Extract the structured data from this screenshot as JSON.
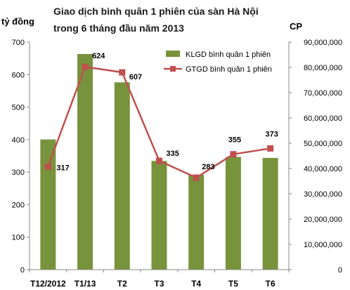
{
  "chart_data": {
    "type": "bar",
    "title_lines": [
      "Giao dịch bình quân 1 phiên của sàn Hà Nội",
      "trong 6 tháng đầu năm 2013"
    ],
    "ylabel_left": "tỷ đồng",
    "ylabel_right": "CP",
    "categories": [
      "T12/2012",
      "T1/13",
      "T2",
      "T3",
      "T4",
      "T5",
      "T6"
    ],
    "ylim_left": [
      0,
      700
    ],
    "ylim_right": [
      0,
      90000000
    ],
    "left_ticks": [
      "0",
      "100",
      "200",
      "300",
      "400",
      "500",
      "600",
      "700"
    ],
    "right_ticks": [
      "0",
      "10,000,000",
      "20,000,000",
      "30,000,000",
      "40,000,000",
      "50,000,000",
      "60,000,000",
      "70,000,000",
      "80,000,000",
      "90,000,000"
    ],
    "grid": false,
    "legend_position": "top-right",
    "series": [
      {
        "name": "KLGD bình quân 1 phiên",
        "type": "bar",
        "axis": "right",
        "color": "#77933C",
        "values": [
          51500000,
          85300000,
          74100000,
          43000000,
          37500000,
          44600000,
          44200000
        ]
      },
      {
        "name": "GTGD bình quân 1 phiên",
        "type": "line",
        "axis": "left",
        "color": "#C0504D",
        "values": [
          317,
          624,
          607,
          335,
          283,
          355,
          373
        ],
        "data_labels": [
          "317",
          "624",
          "607",
          "335",
          "283",
          "355",
          "373"
        ]
      }
    ]
  }
}
